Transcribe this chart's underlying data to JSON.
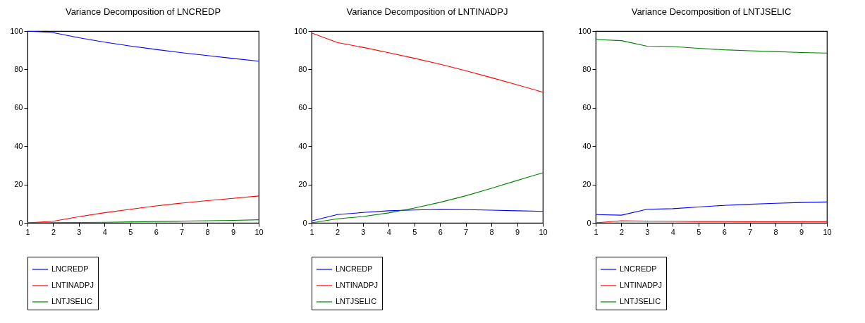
{
  "chart_data": [
    {
      "type": "line",
      "title": "Variance Decomposition of LNCREDP",
      "x": [
        1,
        2,
        3,
        4,
        5,
        6,
        7,
        8,
        9,
        10
      ],
      "xlim": [
        1,
        10
      ],
      "xticks": [
        1,
        2,
        3,
        4,
        5,
        6,
        7,
        8,
        9,
        10
      ],
      "ylim": [
        0,
        100
      ],
      "yticks": [
        0,
        20,
        40,
        60,
        80,
        100
      ],
      "legend": "bottom",
      "series": [
        {
          "name": "LNCREDP",
          "color": "#0000ff",
          "values": [
            100,
            99.2,
            96.5,
            94.2,
            92.2,
            90.4,
            88.7,
            87.2,
            85.7,
            84.3
          ]
        },
        {
          "name": "LNTINADPJ",
          "color": "#ff0000",
          "values": [
            0,
            0.8,
            3.2,
            5.3,
            7.1,
            8.8,
            10.3,
            11.6,
            12.8,
            14.0
          ]
        },
        {
          "name": "LNTJSELIC",
          "color": "#008000",
          "values": [
            0,
            0.1,
            0.2,
            0.3,
            0.5,
            0.7,
            0.9,
            1.1,
            1.3,
            1.6
          ]
        }
      ]
    },
    {
      "type": "line",
      "title": "Variance Decomposition of LNTINADPJ",
      "x": [
        1,
        2,
        3,
        4,
        5,
        6,
        7,
        8,
        9,
        10
      ],
      "xlim": [
        1,
        10
      ],
      "xticks": [
        1,
        2,
        3,
        4,
        5,
        6,
        7,
        8,
        9,
        10
      ],
      "ylim": [
        0,
        100
      ],
      "yticks": [
        0,
        20,
        40,
        60,
        80,
        100
      ],
      "legend": "bottom",
      "series": [
        {
          "name": "LNCREDP",
          "color": "#0000ff",
          "values": [
            1.0,
            4.3,
            5.4,
            6.3,
            6.7,
            7.0,
            6.9,
            6.6,
            6.3,
            6.0
          ]
        },
        {
          "name": "LNTINADPJ",
          "color": "#ff0000",
          "values": [
            99.0,
            94.0,
            91.5,
            88.7,
            85.8,
            82.7,
            79.3,
            75.7,
            72.0,
            68.1
          ]
        },
        {
          "name": "LNTJSELIC",
          "color": "#008000",
          "values": [
            0,
            2.1,
            3.3,
            5.2,
            7.7,
            10.7,
            14.1,
            18.0,
            22.1,
            26.1
          ]
        }
      ]
    },
    {
      "type": "line",
      "title": "Variance Decomposition of LNTJSELIC",
      "x": [
        1,
        2,
        3,
        4,
        5,
        6,
        7,
        8,
        9,
        10
      ],
      "xlim": [
        1,
        10
      ],
      "xticks": [
        1,
        2,
        3,
        4,
        5,
        6,
        7,
        8,
        9,
        10
      ],
      "ylim": [
        0,
        100
      ],
      "yticks": [
        0,
        20,
        40,
        60,
        80,
        100
      ],
      "legend": "bottom",
      "series": [
        {
          "name": "LNCREDP",
          "color": "#0000ff",
          "values": [
            4.3,
            4.0,
            7.1,
            7.4,
            8.3,
            9.1,
            9.7,
            10.2,
            10.6,
            10.9
          ]
        },
        {
          "name": "LNTINADPJ",
          "color": "#ff0000",
          "values": [
            0,
            1.1,
            0.9,
            0.8,
            0.7,
            0.7,
            0.6,
            0.6,
            0.6,
            0.6
          ]
        },
        {
          "name": "LNTJSELIC",
          "color": "#008000",
          "values": [
            95.6,
            95.0,
            92.1,
            91.9,
            91.0,
            90.2,
            89.7,
            89.3,
            88.8,
            88.5
          ]
        }
      ]
    }
  ]
}
